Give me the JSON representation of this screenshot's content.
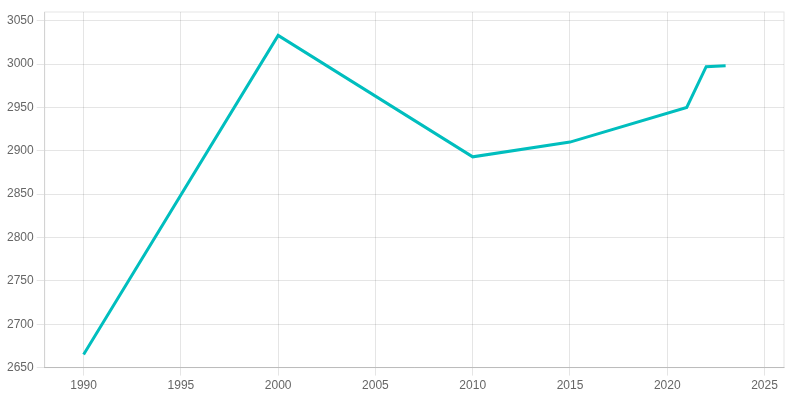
{
  "chart_data": {
    "type": "line",
    "x": [
      1990,
      2000,
      2010,
      2015,
      2021,
      2022,
      2023
    ],
    "values": [
      2665,
      3033,
      2893,
      2910,
      2950,
      2997,
      2998
    ],
    "color": "#00BEBE",
    "xlim": [
      1988,
      2026
    ],
    "xticks": [
      1990,
      1995,
      2000,
      2005,
      2010,
      2015,
      2020,
      2025
    ],
    "ylim": [
      2650,
      3060
    ],
    "yticks": [
      2650,
      2700,
      2750,
      2800,
      2850,
      2900,
      2950,
      3000,
      3050
    ],
    "grid": true
  }
}
